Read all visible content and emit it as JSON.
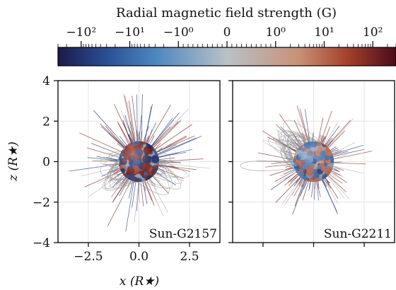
{
  "chart_data": {
    "type": "scatter",
    "colorbar": {
      "title": "Radial magnetic field strength (G)",
      "scale": "symlog",
      "linthresh": 1,
      "range": [
        -300,
        300
      ],
      "ticks": [
        -100,
        -10,
        -1,
        0,
        1,
        10,
        100
      ],
      "tick_labels": [
        "−10²",
        "−10¹",
        "−10⁰",
        "0",
        "10⁰",
        "10¹",
        "10²"
      ],
      "colormap_stops": [
        "#1c1a4a",
        "#2a4f95",
        "#4d86c0",
        "#b9c1c7",
        "#c89177",
        "#a5402b",
        "#4a0c1b"
      ],
      "colormap_stop_values": [
        -300,
        -30,
        -3,
        0,
        3,
        30,
        300
      ]
    },
    "panels": [
      {
        "name": "Sun-G2157",
        "label": "Sun-G2157",
        "x_ticks": [
          -2.5,
          0.0,
          2.5
        ],
        "x_tick_labels": [
          "−2.5",
          "0.0",
          "2.5"
        ],
        "xlim": [
          -4,
          4
        ],
        "ylim": [
          -4,
          4
        ],
        "xlabel": "x (R★)",
        "ylabel": "z (R★)",
        "y_ticks": [
          -4,
          -2,
          0,
          2,
          4
        ],
        "y_tick_labels": [
          "−4",
          "−2",
          "0",
          "2",
          "4"
        ],
        "star_center": [
          0,
          0
        ],
        "star_radius": 1.0
      },
      {
        "name": "Sun-G2211",
        "label": "Sun-G2211",
        "x_ticks": [
          -2.5,
          0.0,
          2.5
        ],
        "x_tick_labels": [
          "",
          "",
          ""
        ],
        "xlim": [
          -4,
          4
        ],
        "ylim": [
          -4,
          4
        ],
        "xlabel": "",
        "ylabel": "",
        "y_ticks": [
          -4,
          -2,
          0,
          2,
          4
        ],
        "y_tick_labels": [
          "",
          "",
          "",
          "",
          ""
        ],
        "star_center": [
          0,
          0
        ],
        "star_radius": 1.0
      }
    ],
    "grid": true
  }
}
